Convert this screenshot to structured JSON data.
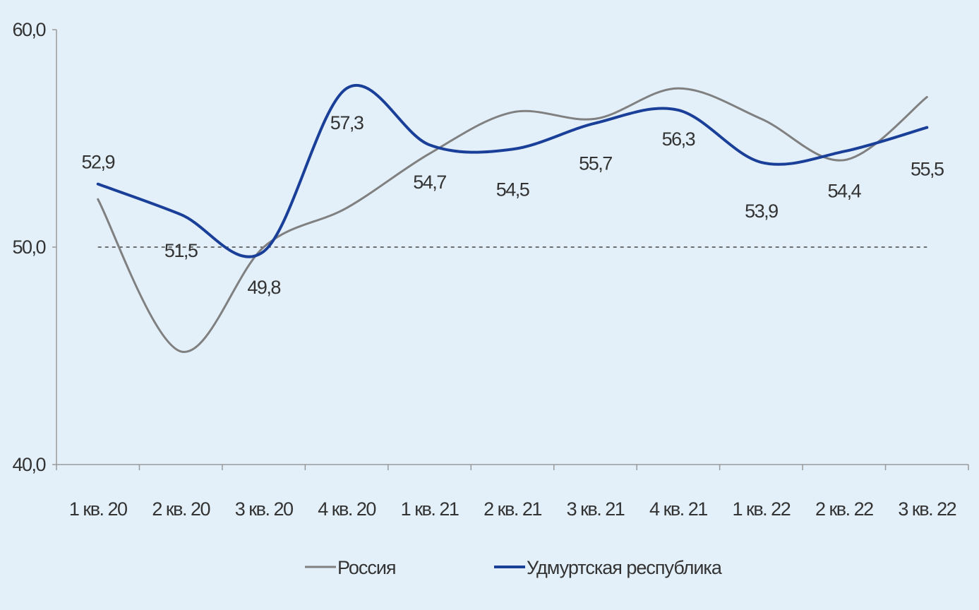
{
  "chart_data": {
    "type": "line",
    "categories": [
      "1 кв. 20",
      "2 кв. 20",
      "3 кв. 20",
      "4 кв. 20",
      "1 кв. 21",
      "2 кв. 21",
      "3 кв. 21",
      "4 кв. 21",
      "1 кв. 22",
      "2 кв. 22",
      "3 кв. 22"
    ],
    "ylim": [
      40,
      60
    ],
    "yticks": [
      "40,0",
      "50,0",
      "60,0"
    ],
    "reference_line": 50,
    "series": [
      {
        "name": "Россия",
        "color": "#808080",
        "values": [
          52.2,
          45.2,
          50.0,
          51.8,
          54.3,
          56.2,
          55.9,
          57.3,
          55.9,
          54.0,
          56.9
        ],
        "labels": [
          "",
          "",
          "",
          "",
          "",
          "",
          "",
          "",
          "",
          "",
          ""
        ]
      },
      {
        "name": "Удмуртская республика",
        "color": "#1a3f99",
        "values": [
          52.9,
          51.5,
          49.8,
          57.3,
          54.7,
          54.5,
          55.7,
          56.3,
          53.9,
          54.4,
          55.5
        ],
        "labels": [
          "52,9",
          "51,5",
          "49,8",
          "57,3",
          "54,7",
          "54,5",
          "55,7",
          "56,3",
          "53,9",
          "54,4",
          "55,5"
        ]
      }
    ],
    "legend_position": "bottom",
    "grid": false
  }
}
